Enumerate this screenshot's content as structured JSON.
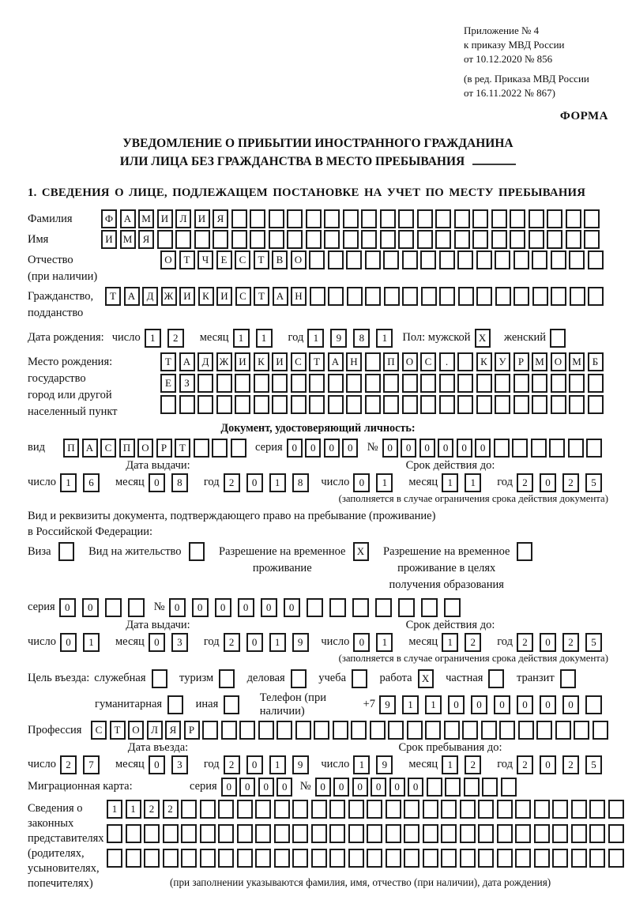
{
  "header": {
    "annex_lines": [
      "Приложение № 4",
      "к приказу МВД России",
      "от 10.12.2020 № 856"
    ],
    "edition_lines": [
      "(в ред. Приказа МВД России",
      "от 16.11.2022 № 867)"
    ],
    "form_label": "ФОРМА",
    "title_line1": "УВЕДОМЛЕНИЕ О ПРИБЫТИИ ИНОСТРАННОГО ГРАЖДАНИНА",
    "title_line2": "ИЛИ ЛИЦА БЕЗ ГРАЖДАНСТВА В МЕСТО ПРЕБЫВАНИЯ",
    "section1_heading": "1. СВЕДЕНИЯ О ЛИЦЕ, ПОДЛЕЖАЩЕМ ПОСТАНОВКЕ НА УЧЕТ ПО МЕСТУ ПРЕБЫВАНИЯ"
  },
  "labels": {
    "day": "число",
    "month": "месяц",
    "year": "год",
    "seriya": "серия",
    "number_sign": "№",
    "issue_date": "Дата выдачи:",
    "valid_until": "Срок действия до:",
    "restriction_note": "(заполняется в случае ограничения срока действия документа)"
  },
  "person": {
    "surname": {
      "label": "Фамилия",
      "value": {
        "text": "ФАМИЛИЯ",
        "count": 27
      }
    },
    "given_name": {
      "label": "Имя",
      "value": {
        "text": "ИМЯ",
        "count": 27
      }
    },
    "patronymic": {
      "label": "Отчество",
      "sublabel": "(при наличии)",
      "value": {
        "text": "ОТЧЕСТВО",
        "count": 24
      }
    },
    "citizenship": {
      "label1": "Гражданство,",
      "label2": "подданство",
      "value": {
        "text": "ТАДЖИКИСТАН",
        "count": 27
      }
    },
    "birth_date": {
      "label": "Дата рождения:",
      "day": "12",
      "month": "11",
      "year": "1981"
    },
    "sex": {
      "male_label": "Пол: мужской",
      "male": {
        "text": "X",
        "count": 1
      },
      "female_label": "женский",
      "female": {
        "text": "",
        "count": 1
      }
    },
    "birth_place": {
      "label_lines": [
        "Место рождения:",
        "государство",
        "город или другой",
        "населенный пункт"
      ],
      "rows": [
        {
          "text": "ТАДЖИКИСТАН ПОС. КУРМОМБ",
          "count": 24
        },
        {
          "text": "ЕЗ",
          "count": 24
        },
        {
          "text": "",
          "count": 24
        }
      ]
    }
  },
  "identity_doc": {
    "heading": "Документ, удостоверяющий личность:",
    "kind_label": "вид",
    "kind": {
      "text": "ПАСПОРТ",
      "count": 10
    },
    "seriya": {
      "text": "0000",
      "count": 4
    },
    "number": {
      "text": "000000",
      "count": 12
    },
    "issue": {
      "day": "16",
      "month": "08",
      "year": "2018"
    },
    "valid": {
      "day": "01",
      "month": "11",
      "year": "2025"
    }
  },
  "residence": {
    "intro1": "Вид и реквизиты документа, подтверждающего право на пребывание (проживание)",
    "intro2": "в Российской Федерации:",
    "options": [
      {
        "label": "Виза",
        "box": {
          "text": "",
          "count": 1
        }
      },
      {
        "label": "Вид на жительство",
        "box": {
          "text": "",
          "count": 1
        }
      },
      {
        "lines": [
          "Разрешение на временное",
          "проживание"
        ],
        "box": {
          "text": "X",
          "count": 1
        }
      },
      {
        "lines": [
          "Разрешение на временное",
          "проживание в целях",
          "получения образования"
        ],
        "box": {
          "text": "",
          "count": 1
        }
      }
    ],
    "seriya": {
      "text": "00",
      "count": 4
    },
    "number": {
      "text": "000000",
      "count": 13
    },
    "issue": {
      "day": "01",
      "month": "03",
      "year": "2019"
    },
    "valid": {
      "day": "01",
      "month": "12",
      "year": "2025"
    }
  },
  "entry": {
    "purpose_label": "Цель въезда:",
    "options": [
      {
        "label": "служебная",
        "box": {
          "text": "",
          "count": 1
        }
      },
      {
        "label": "туризм",
        "box": {
          "text": "",
          "count": 1
        }
      },
      {
        "label": "деловая",
        "box": {
          "text": "",
          "count": 1
        }
      },
      {
        "label": "учеба",
        "box": {
          "text": "",
          "count": 1
        }
      },
      {
        "label": "работа",
        "box": {
          "text": "X",
          "count": 1
        }
      },
      {
        "label": "частная",
        "box": {
          "text": "",
          "count": 1
        }
      },
      {
        "label": "транзит",
        "box": {
          "text": "",
          "count": 1
        }
      },
      {
        "label": "гуманитарная",
        "box": {
          "text": "",
          "count": 1
        }
      },
      {
        "label": "иная",
        "box": {
          "text": "",
          "count": 1
        }
      }
    ],
    "phone_label": "Телефон (при наличии)",
    "phone_prefix": "+7",
    "phone": {
      "text": "911000000",
      "count": 10
    },
    "profession_label": "Профессия",
    "profession": {
      "text": "СТОЛЯР",
      "count": 28
    },
    "entry_date_header": "Дата въезда:",
    "stay_until_header": "Срок пребывания до:",
    "entry_date": {
      "day": "27",
      "month": "03",
      "year": "2019"
    },
    "stay_until": {
      "day": "19",
      "month": "12",
      "year": "2025"
    }
  },
  "migration_card": {
    "label": "Миграционная карта:",
    "seriya": {
      "text": "0000",
      "count": 4
    },
    "number": {
      "text": "000000",
      "count": 11
    }
  },
  "legal_reps": {
    "label_lines": [
      "Сведения о",
      "законных",
      "представителях",
      "(родителях,",
      "усыновителях,",
      "попечителях)"
    ],
    "rows": [
      {
        "text": "1122",
        "count": 28
      },
      {
        "text": "",
        "count": 28
      },
      {
        "text": "",
        "count": 28
      }
    ],
    "note": "(при заполнении указываются фамилия, имя, отчество (при наличии), дата рождения)"
  }
}
